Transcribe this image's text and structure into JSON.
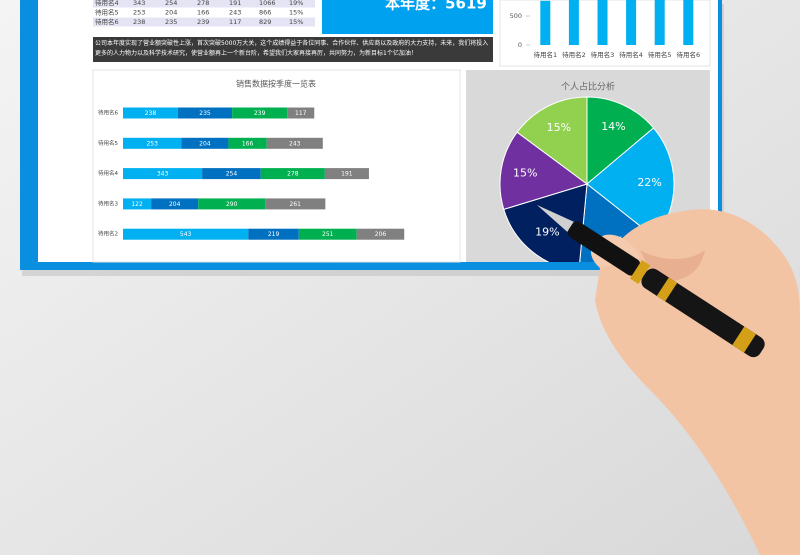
{
  "table": {
    "rows": [
      [
        "待用名4",
        "343",
        "254",
        "278",
        "191",
        "1066",
        "19%"
      ],
      [
        "待用名5",
        "253",
        "204",
        "166",
        "243",
        "866",
        "15%"
      ],
      [
        "待用名6",
        "238",
        "235",
        "239",
        "117",
        "829",
        "15%"
      ]
    ]
  },
  "banner": "本年度：5619",
  "description": "公司本年度实现了营业额突破性上涨，首次突破5000万大关，这个成绩得益于各位同事、合作伙伴、供应商以及政府的大力支持，未来，我们将投入更多的人力物力以及科学技术研究，使营业额再上一个新台阶，希望我们大家再接再厉，共同努力，为新目标1个亿加油！",
  "chart_data": [
    {
      "type": "bar",
      "title": "销售数据按季度一览表",
      "categories": [
        "待用名6",
        "待用名5",
        "待用名4",
        "待用名3",
        "待用名2"
      ],
      "series": [
        {
          "color": "#00b0f0",
          "values": [
            238,
            253,
            343,
            122,
            543
          ]
        },
        {
          "color": "#0070c0",
          "values": [
            235,
            204,
            254,
            204,
            219
          ]
        },
        {
          "color": "#00b050",
          "values": [
            239,
            166,
            278,
            290,
            251
          ]
        },
        {
          "color": "#808080",
          "values": [
            117,
            243,
            191,
            261,
            206
          ]
        }
      ],
      "xlim": [
        0,
        1400
      ]
    },
    {
      "type": "pie",
      "title": "个人占比分析",
      "values": [
        14,
        22,
        16,
        19,
        15,
        15
      ],
      "value_labels": [
        "14%",
        "22%",
        "16%",
        "19%",
        "15%",
        "15%"
      ],
      "colors": [
        "#00b050",
        "#00b0f0",
        "#0070c0",
        "#002060",
        "#7030a0",
        "#92d050"
      ]
    },
    {
      "type": "column",
      "categories": [
        "待用名1",
        "待用名2",
        "待用名3",
        "待用名4",
        "待用名5",
        "待用名6"
      ],
      "values": [
        762,
        1219,
        877,
        1066,
        866,
        829
      ],
      "color": "#00b0f0",
      "ylim": [
        0,
        1500
      ],
      "yticks": [
        0,
        500
      ]
    }
  ]
}
